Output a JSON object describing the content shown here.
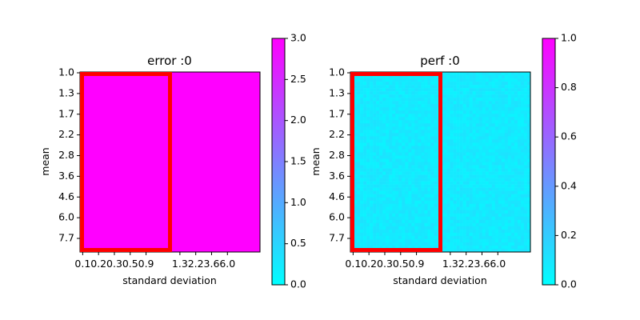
{
  "chart_data": [
    {
      "type": "heatmap",
      "title": "error :0",
      "xlabel": "standard deviation",
      "ylabel": "mean",
      "x_tick_labels": [
        "0.1",
        "0.2",
        "0.3",
        "0.5",
        "0.9",
        "1.3",
        "2.2",
        "3.6",
        "6.0"
      ],
      "y_tick_labels": [
        "1.0",
        "1.3",
        "1.7",
        "2.2",
        "2.8",
        "3.6",
        "4.6",
        "6.0",
        "7.7"
      ],
      "colormap": [
        "#00ffff",
        "#ff00ff"
      ],
      "colorbar": {
        "min": 0,
        "max": 3,
        "ticks": [
          "0.0",
          "0.5",
          "1.0",
          "1.5",
          "2.0",
          "2.5",
          "3.0"
        ]
      },
      "value": 3,
      "noise": 0,
      "highlight": {
        "x_range": [
          0,
          0.5
        ],
        "y_range": [
          0,
          1
        ],
        "color": "#ff0000"
      }
    },
    {
      "type": "heatmap",
      "title": "perf :0",
      "xlabel": "standard deviation",
      "ylabel": "mean",
      "x_tick_labels": [
        "0.1",
        "0.2",
        "0.3",
        "0.5",
        "0.9",
        "1.3",
        "2.2",
        "3.6",
        "6.0"
      ],
      "y_tick_labels": [
        "1.0",
        "1.3",
        "1.7",
        "2.2",
        "2.8",
        "3.6",
        "4.6",
        "6.0",
        "7.7"
      ],
      "colormap": [
        "#00ffff",
        "#ff00ff"
      ],
      "colorbar": {
        "min": 0,
        "max": 1,
        "ticks": [
          "0.0",
          "0.2",
          "0.4",
          "0.6",
          "0.8",
          "1.0"
        ]
      },
      "value": 0.08,
      "noise": 0.035,
      "highlight": {
        "x_range": [
          0,
          0.5
        ],
        "y_range": [
          0,
          1
        ],
        "color": "#ff0000"
      }
    }
  ]
}
